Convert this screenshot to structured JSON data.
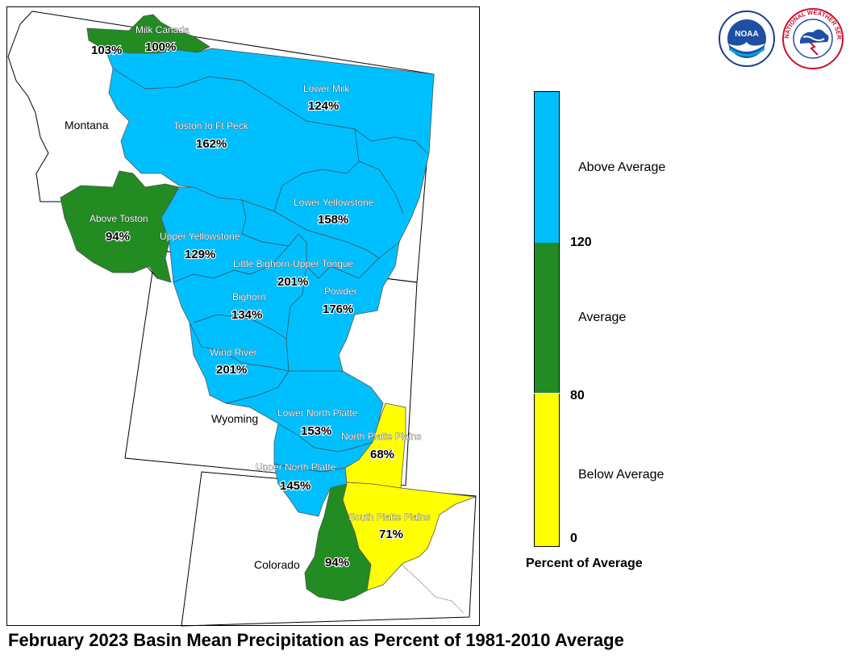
{
  "title": "February 2023 Basin Mean Precipitation as Percent of 1981-2010 Average",
  "colors": {
    "above": "#00bfff",
    "average": "#228b22",
    "below": "#ffff00"
  },
  "states": {
    "montana": "Montana",
    "wyoming": "Wyoming",
    "colorado": "Colorado"
  },
  "basins": {
    "milk_canada_west": {
      "pct": "103%"
    },
    "milk_canada": {
      "name": "Milk Canada",
      "pct": "100%"
    },
    "lower_milk": {
      "name": "Lower Milk",
      "pct": "124%"
    },
    "toston_ft_peck": {
      "name": "Toston to Ft Peck",
      "pct": "162%"
    },
    "above_toston": {
      "name": "Above Toston",
      "pct": "94%"
    },
    "lower_yellowstone": {
      "name": "Lower Yellowstone",
      "pct": "158%"
    },
    "upper_yellowstone": {
      "name": "Upper Yellowstone",
      "pct": "129%"
    },
    "little_bighorn": {
      "name": "Little Bighorn-Upper Tongue",
      "pct": "201%"
    },
    "bighorn": {
      "name": "Bighorn",
      "pct": "134%"
    },
    "powder": {
      "name": "Powder",
      "pct": "176%"
    },
    "wind_river": {
      "name": "Wind River",
      "pct": "201%"
    },
    "lower_north_platte": {
      "name": "Lower North Platte",
      "pct": "153%"
    },
    "north_platte_plains": {
      "name": "North Platte Plains",
      "pct": "68%"
    },
    "upper_north_platte": {
      "name": "Upper North Platte",
      "pct": "145%"
    },
    "south_platte_plains": {
      "name": "South Platte Plains",
      "pct": "71%"
    },
    "colorado_front": {
      "pct": "94%"
    }
  },
  "legend": {
    "title": "Percent of Average",
    "categories": [
      {
        "label": "Above Average",
        "color": "#00bfff"
      },
      {
        "label": "Average",
        "color": "#228b22"
      },
      {
        "label": "Below Average",
        "color": "#ffff00"
      }
    ],
    "ticks": [
      "120",
      "80",
      "0"
    ]
  },
  "logos": {
    "noaa": "NOAA",
    "nws": "NATIONAL WEATHER SERVICE"
  }
}
